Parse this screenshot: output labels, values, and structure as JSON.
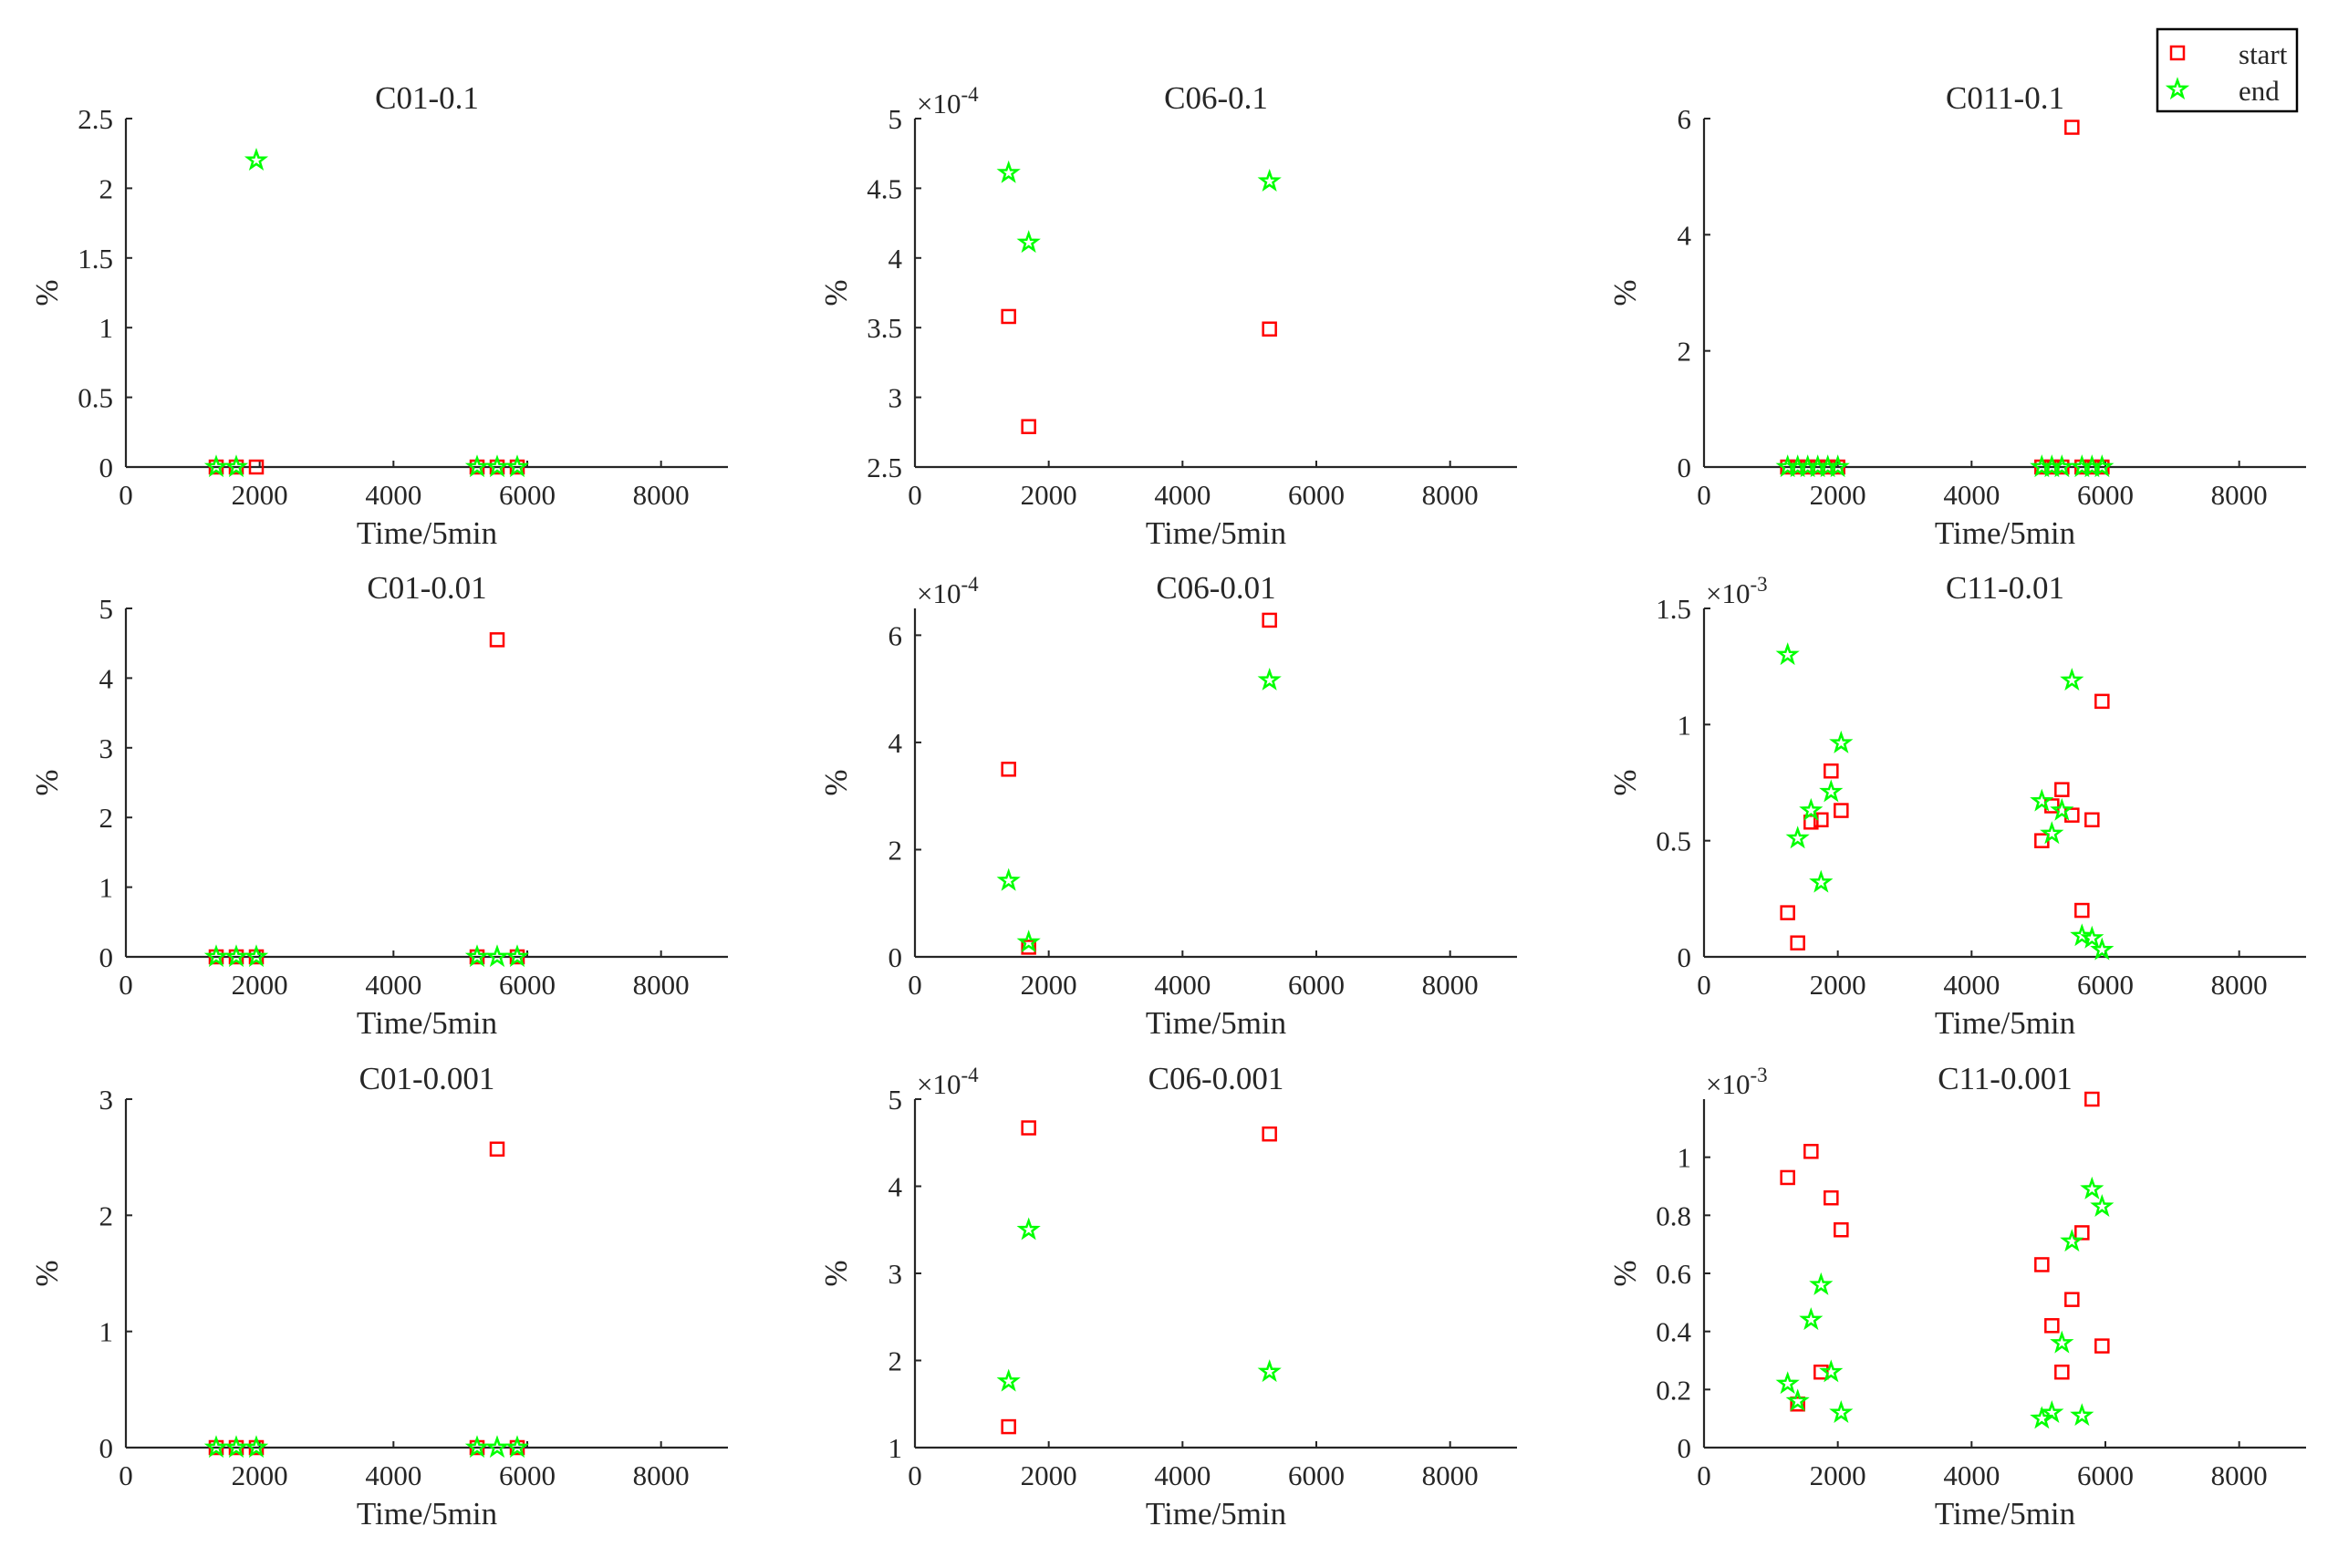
{
  "legend": {
    "placement": "top-right",
    "start_label": "start",
    "end_label": "end",
    "start_color": "#ff0000",
    "end_color": "#00ff00"
  },
  "chart_data": [
    {
      "type": "scatter",
      "title": "C01-0.1",
      "xlabel": "Time/5min",
      "ylabel": "%",
      "xlim": [
        0,
        9000
      ],
      "ylim": [
        0,
        2.5
      ],
      "xticks": [
        0,
        2000,
        4000,
        6000,
        8000
      ],
      "yticks": [
        0,
        0.5,
        1,
        1.5,
        2,
        2.5
      ],
      "ytick_labels": [
        "0",
        "0.5",
        "1",
        "1.5",
        "2",
        "2.5"
      ],
      "exponent": null,
      "series": [
        {
          "name": "start",
          "x": [
            1350,
            1650,
            1950,
            5250,
            5550,
            5850
          ],
          "y": [
            0,
            0,
            0,
            0,
            0,
            0
          ]
        },
        {
          "name": "end",
          "x": [
            1350,
            1650,
            1950,
            5250,
            5550,
            5850
          ],
          "y": [
            0,
            0,
            2.2,
            0,
            0,
            0
          ]
        }
      ]
    },
    {
      "type": "scatter",
      "title": "C06-0.1",
      "xlabel": "Time/5min",
      "ylabel": "%",
      "xlim": [
        0,
        9000
      ],
      "ylim": [
        2.5,
        5
      ],
      "xticks": [
        0,
        2000,
        4000,
        6000,
        8000
      ],
      "yticks": [
        2.5,
        3,
        3.5,
        4,
        4.5,
        5
      ],
      "ytick_labels": [
        "2.5",
        "3",
        "3.5",
        "4",
        "4.5",
        "5"
      ],
      "exponent": "-4",
      "series": [
        {
          "name": "start",
          "x": [
            1400,
            1700,
            5300
          ],
          "y": [
            3.58,
            2.79,
            3.49
          ]
        },
        {
          "name": "end",
          "x": [
            1400,
            1700,
            5300
          ],
          "y": [
            4.61,
            4.11,
            4.55
          ]
        }
      ]
    },
    {
      "type": "scatter",
      "title": "C011-0.1",
      "xlabel": "Time/5min",
      "ylabel": "%",
      "xlim": [
        0,
        9000
      ],
      "ylim": [
        0,
        6
      ],
      "xticks": [
        0,
        2000,
        4000,
        6000,
        8000
      ],
      "yticks": [
        0,
        2,
        4,
        6
      ],
      "ytick_labels": [
        "0",
        "2",
        "4",
        "6"
      ],
      "exponent": null,
      "series": [
        {
          "name": "start",
          "x": [
            1250,
            1400,
            1550,
            1700,
            1850,
            2000,
            5050,
            5200,
            5350,
            5500,
            5650,
            5800,
            5950
          ],
          "y": [
            0,
            0,
            0,
            0,
            0,
            0,
            0,
            0,
            0,
            5.85,
            0,
            0,
            0
          ]
        },
        {
          "name": "end",
          "x": [
            1250,
            1400,
            1550,
            1700,
            1850,
            2000,
            5050,
            5200,
            5350,
            5650,
            5800,
            5950
          ],
          "y": [
            0,
            0,
            0,
            0,
            0,
            0,
            0,
            0,
            0,
            0,
            0,
            0
          ]
        }
      ]
    },
    {
      "type": "scatter",
      "title": "C01-0.01",
      "xlabel": "Time/5min",
      "ylabel": "%",
      "xlim": [
        0,
        9000
      ],
      "ylim": [
        0,
        5
      ],
      "xticks": [
        0,
        2000,
        4000,
        6000,
        8000
      ],
      "yticks": [
        0,
        1,
        2,
        3,
        4,
        5
      ],
      "ytick_labels": [
        "0",
        "1",
        "2",
        "3",
        "4",
        "5"
      ],
      "exponent": null,
      "series": [
        {
          "name": "start",
          "x": [
            1350,
            1650,
            1950,
            5250,
            5550,
            5850
          ],
          "y": [
            0,
            0,
            0,
            0,
            4.55,
            0
          ]
        },
        {
          "name": "end",
          "x": [
            1350,
            1650,
            1950,
            5250,
            5550,
            5850
          ],
          "y": [
            0,
            0,
            0,
            0,
            0,
            0
          ]
        }
      ]
    },
    {
      "type": "scatter",
      "title": "C06-0.01",
      "xlabel": "Time/5min",
      "ylabel": "%",
      "xlim": [
        0,
        9000
      ],
      "ylim": [
        0,
        6.5
      ],
      "xticks": [
        0,
        2000,
        4000,
        6000,
        8000
      ],
      "yticks": [
        0,
        2,
        4,
        6
      ],
      "ytick_labels": [
        "0",
        "2",
        "4",
        "6"
      ],
      "exponent": "-4",
      "series": [
        {
          "name": "start",
          "x": [
            1400,
            1700,
            5300
          ],
          "y": [
            3.5,
            0.18,
            6.28
          ]
        },
        {
          "name": "end",
          "x": [
            1400,
            1700,
            5300
          ],
          "y": [
            1.42,
            0.27,
            5.16
          ]
        }
      ]
    },
    {
      "type": "scatter",
      "title": "C11-0.01",
      "xlabel": "Time/5min",
      "ylabel": "%",
      "xlim": [
        0,
        9000
      ],
      "ylim": [
        0,
        1.5
      ],
      "xticks": [
        0,
        2000,
        4000,
        6000,
        8000
      ],
      "yticks": [
        0,
        0.5,
        1,
        1.5
      ],
      "ytick_labels": [
        "0",
        "0.5",
        "1",
        "1.5"
      ],
      "exponent": "-3",
      "series": [
        {
          "name": "start",
          "x": [
            1250,
            1400,
            1600,
            1750,
            1900,
            2050,
            5050,
            5200,
            5350,
            5500,
            5650,
            5800,
            5950
          ],
          "y": [
            0.19,
            0.06,
            0.58,
            0.59,
            0.8,
            0.63,
            0.5,
            0.65,
            0.72,
            0.61,
            0.2,
            0.59,
            1.1
          ]
        },
        {
          "name": "end",
          "x": [
            1250,
            1400,
            1600,
            1750,
            1900,
            2050,
            5050,
            5200,
            5350,
            5500,
            5650,
            5800,
            5950
          ],
          "y": [
            1.3,
            0.51,
            0.63,
            0.32,
            0.71,
            0.92,
            0.67,
            0.53,
            0.63,
            1.19,
            0.09,
            0.08,
            0.03
          ]
        }
      ]
    },
    {
      "type": "scatter",
      "title": "C01-0.001",
      "xlabel": "Time/5min",
      "ylabel": "%",
      "xlim": [
        0,
        9000
      ],
      "ylim": [
        0,
        3
      ],
      "xticks": [
        0,
        2000,
        4000,
        6000,
        8000
      ],
      "yticks": [
        0,
        1,
        2,
        3
      ],
      "ytick_labels": [
        "0",
        "1",
        "2",
        "3"
      ],
      "exponent": null,
      "series": [
        {
          "name": "start",
          "x": [
            1350,
            1650,
            1950,
            5250,
            5550,
            5850
          ],
          "y": [
            0,
            0,
            0,
            0,
            2.57,
            0
          ]
        },
        {
          "name": "end",
          "x": [
            1350,
            1650,
            1950,
            5250,
            5550,
            5850
          ],
          "y": [
            0,
            0,
            0,
            0,
            0,
            0
          ]
        }
      ]
    },
    {
      "type": "scatter",
      "title": "C06-0.001",
      "xlabel": "Time/5min",
      "ylabel": "%",
      "xlim": [
        0,
        9000
      ],
      "ylim": [
        1,
        5
      ],
      "xticks": [
        0,
        2000,
        4000,
        6000,
        8000
      ],
      "yticks": [
        1,
        2,
        3,
        4,
        5
      ],
      "ytick_labels": [
        "1",
        "2",
        "3",
        "4",
        "5"
      ],
      "exponent": "-4",
      "series": [
        {
          "name": "start",
          "x": [
            1400,
            1700,
            5300
          ],
          "y": [
            1.24,
            4.67,
            4.6
          ]
        },
        {
          "name": "end",
          "x": [
            1400,
            1700,
            5300
          ],
          "y": [
            1.76,
            3.5,
            1.87
          ]
        }
      ]
    },
    {
      "type": "scatter",
      "title": "C11-0.001",
      "xlabel": "Time/5min",
      "ylabel": "%",
      "xlim": [
        0,
        9000
      ],
      "ylim": [
        0,
        1.2
      ],
      "xticks": [
        0,
        2000,
        4000,
        6000,
        8000
      ],
      "yticks": [
        0,
        0.2,
        0.4,
        0.6,
        0.8,
        1
      ],
      "ytick_labels": [
        "0",
        "0.2",
        "0.4",
        "0.6",
        "0.8",
        "1"
      ],
      "exponent": "-3",
      "series": [
        {
          "name": "start",
          "x": [
            1250,
            1400,
            1600,
            1750,
            1900,
            2050,
            5050,
            5200,
            5350,
            5500,
            5650,
            5800,
            5950
          ],
          "y": [
            0.93,
            0.15,
            1.02,
            0.26,
            0.86,
            0.75,
            0.63,
            0.42,
            0.26,
            0.51,
            0.74,
            1.2,
            0.35
          ]
        },
        {
          "name": "end",
          "x": [
            1250,
            1400,
            1600,
            1750,
            1900,
            2050,
            5050,
            5200,
            5350,
            5500,
            5650,
            5800,
            5950
          ],
          "y": [
            0.22,
            0.16,
            0.44,
            0.56,
            0.26,
            0.12,
            0.1,
            0.12,
            0.36,
            0.71,
            0.11,
            0.89,
            0.83
          ]
        }
      ]
    }
  ]
}
